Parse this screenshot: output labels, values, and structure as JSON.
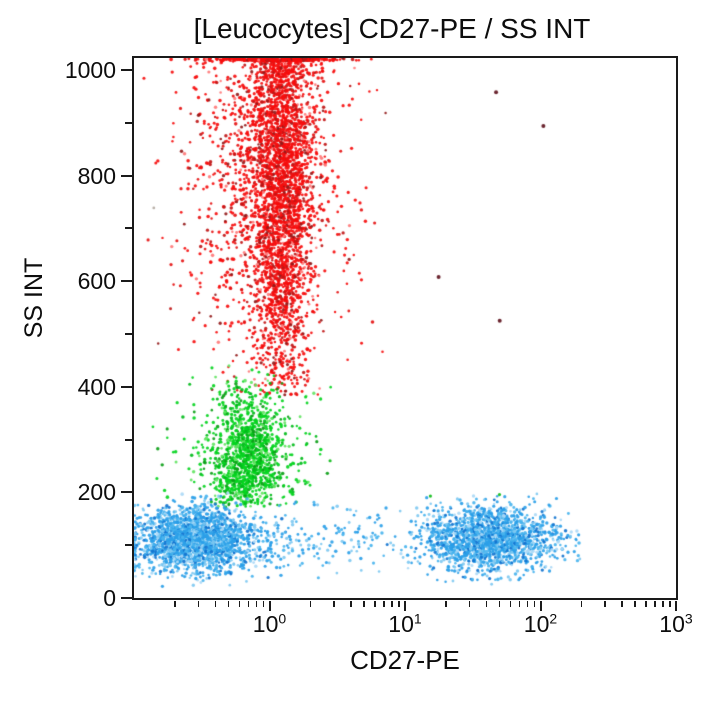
{
  "chart_data": {
    "type": "scatter",
    "title": "[Leucocytes] CD27-PE / SS INT",
    "xlabel": "CD27-PE",
    "ylabel": "SS INT",
    "x_scale": "log",
    "x_domain_log10": [
      -1,
      3
    ],
    "x_tick_base": "10",
    "x_tick_exponents": [
      0,
      1,
      2,
      3
    ],
    "y_domain": [
      0,
      1023
    ],
    "y_major_ticks": [
      0,
      200,
      400,
      600,
      800,
      1000
    ],
    "y_minor_step": 100,
    "grid": "off",
    "legend": "none",
    "background": "#ffffff",
    "axis_color": "#1a1a1a",
    "populations": [
      {
        "name": "granulocytes-red-band",
        "n": 4500,
        "palette": [
          [
            "#f60d0d",
            62
          ],
          [
            "#e51212",
            16
          ],
          [
            "#c01616",
            10
          ],
          [
            "#921a1a",
            6
          ],
          [
            "#ff7a7a",
            6
          ]
        ],
        "x": {
          "core_mean": 0.08,
          "core_sd": 0.115,
          "fringe_mean": -0.05,
          "fringe_sd": 0.3,
          "fringe_frac": 0.28,
          "min": -0.95,
          "max": 0.9
        },
        "y": {
          "mean": 820,
          "sd": 215,
          "min": 385,
          "max": 1023,
          "pile_top": true
        }
      },
      {
        "name": "monocytes-green-cluster",
        "n": 1400,
        "palette": [
          [
            "#05d41f",
            55
          ],
          [
            "#00bb1a",
            18
          ],
          [
            "#63e463",
            15
          ],
          [
            "#0b9e16",
            12
          ]
        ],
        "x": {
          "core_mean": -0.165,
          "core_sd": 0.125,
          "fringe_mean": -0.12,
          "fringe_sd": 0.27,
          "fringe_frac": 0.22,
          "min": -0.95,
          "max": 0.75
        },
        "y": {
          "mean": 262,
          "sd": 68,
          "min": 172,
          "max": 445
        }
      },
      {
        "name": "lymphocytes-cd27neg-blue-left",
        "n": 2100,
        "palette": [
          [
            "#2b9fe8",
            42
          ],
          [
            "#49b4ee",
            20
          ],
          [
            "#7fc9f1",
            14
          ],
          [
            "#1173cf",
            14
          ],
          [
            "#abd9f6",
            10
          ]
        ],
        "x": {
          "core_mean": -0.54,
          "core_sd": 0.2,
          "fringe_mean": -0.5,
          "fringe_sd": 0.3,
          "fringe_frac": 0.15,
          "min": -1.0,
          "max": 0.55,
          "pile_left": true
        },
        "y": {
          "mean": 112,
          "sd": 31,
          "min": 22,
          "max": 200
        }
      },
      {
        "name": "lymphocytes-cd27pos-blue-right",
        "n": 1800,
        "palette": [
          [
            "#2b9fe8",
            42
          ],
          [
            "#49b4ee",
            20
          ],
          [
            "#7fc9f1",
            14
          ],
          [
            "#1173cf",
            14
          ],
          [
            "#abd9f6",
            10
          ]
        ],
        "x": {
          "core_mean": 1.62,
          "core_sd": 0.24,
          "fringe_mean": 1.55,
          "fringe_sd": 0.35,
          "fringe_frac": 0.18,
          "min": 0.55,
          "max": 2.3
        },
        "y": {
          "mean": 113,
          "sd": 30,
          "min": 25,
          "max": 200
        }
      },
      {
        "name": "lymphocytes-bridge-sparse-blue",
        "n": 130,
        "palette": [
          [
            "#2b9fe8",
            50
          ],
          [
            "#49b4ee",
            25
          ],
          [
            "#7fc9f1",
            25
          ]
        ],
        "uniform_x": [
          -0.05,
          0.85
        ],
        "y": {
          "mean": 110,
          "sd": 33,
          "min": 30,
          "max": 195
        }
      }
    ],
    "outliers": [
      {
        "name": "dark-red-strays",
        "color": "#6b2630",
        "r": 2.0,
        "points": [
          [
            47,
            958
          ],
          [
            105,
            894
          ],
          [
            17.7,
            608
          ],
          [
            50,
            525
          ]
        ]
      },
      {
        "name": "green-strays",
        "color": "#21c12b",
        "r": 1.6,
        "points": [
          [
            15.4,
            193
          ],
          [
            49.8,
            196
          ],
          [
            2.8,
            260
          ]
        ]
      },
      {
        "name": "faint-gray-stray",
        "color": "#b9b0a8",
        "r": 1.4,
        "points": [
          [
            0.14,
            739
          ]
        ]
      }
    ]
  }
}
